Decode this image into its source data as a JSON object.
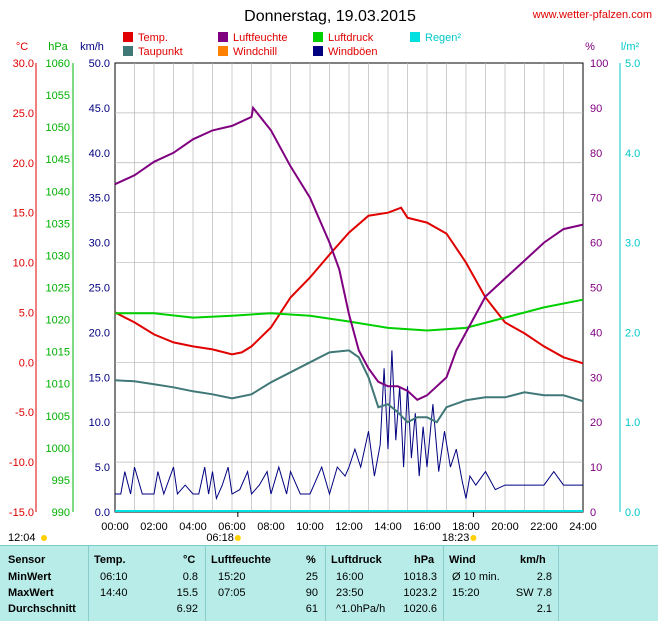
{
  "title": "Donnerstag, 19.03.2015",
  "site": "www.wetter-pfalzen.com",
  "legend": [
    {
      "name": "Temp.",
      "color": "#e00000"
    },
    {
      "name": "Luftfeuchte",
      "color": "#800080"
    },
    {
      "name": "Luftdruck",
      "color": "#00d000"
    },
    {
      "name": "Regen²",
      "color": "#00e0e0"
    },
    {
      "name": "Taupunkt",
      "color": "#407878"
    },
    {
      "name": "Windchill",
      "color": "#ff8000"
    },
    {
      "name": "Windböen",
      "color": "#000080"
    }
  ],
  "axis_units": {
    "temp": "°C",
    "pressure": "hPa",
    "wind": "km/h",
    "humidity": "%",
    "rain": "l/m²"
  },
  "sun": {
    "sunrise_marker": "06:18",
    "sunset_marker": "18:23",
    "left_label": "12:04"
  },
  "chart_data": {
    "type": "line",
    "x_ticks": [
      "00:00",
      "02:00",
      "04:00",
      "06:00",
      "08:00",
      "10:00",
      "12:00",
      "14:00",
      "16:00",
      "18:00",
      "20:00",
      "22:00",
      "24:00"
    ],
    "axes": {
      "temp": {
        "min": -15,
        "max": 30,
        "ticks": [
          "30.0",
          "25.0",
          "20.0",
          "15.0",
          "10.0",
          "5.0",
          "0.0",
          "-5.0",
          "-10.0",
          "-15.0"
        ]
      },
      "pressure": {
        "min": 990,
        "max": 1060,
        "ticks": [
          "1060",
          "1055",
          "1050",
          "1045",
          "1040",
          "1035",
          "1030",
          "1025",
          "1020",
          "1015",
          "1010",
          "1005",
          "1000",
          "995",
          "990"
        ]
      },
      "wind": {
        "min": 0,
        "max": 50,
        "ticks": [
          "50.0",
          "45.0",
          "40.0",
          "35.0",
          "30.0",
          "25.0",
          "20.0",
          "15.0",
          "10.0",
          "5.0",
          "0.0"
        ]
      },
      "humidity": {
        "min": 0,
        "max": 100,
        "ticks": [
          "100",
          "90",
          "80",
          "70",
          "60",
          "50",
          "40",
          "30",
          "20",
          "10",
          "0"
        ]
      },
      "rain": {
        "min": 0,
        "max": 5,
        "ticks": [
          "5.0",
          "4.0",
          "3.0",
          "2.0",
          "1.0",
          "0.0"
        ]
      }
    },
    "series": [
      {
        "name": "Temp.",
        "axis": "temp",
        "color": "#e00000",
        "x": [
          0,
          1,
          2,
          3,
          4,
          5,
          6,
          6.5,
          7,
          8,
          9,
          10,
          11,
          12,
          13,
          14,
          14.67,
          15,
          16,
          17,
          18,
          19,
          20,
          21,
          22,
          23,
          24
        ],
        "y": [
          5.0,
          4.0,
          2.8,
          2.0,
          1.6,
          1.3,
          0.8,
          1.0,
          1.6,
          3.5,
          6.5,
          8.5,
          10.8,
          13.0,
          14.7,
          15.0,
          15.5,
          14.5,
          14.0,
          12.9,
          10.0,
          6.5,
          4.0,
          2.9,
          1.6,
          0.5,
          -0.1
        ]
      },
      {
        "name": "Taupunkt",
        "axis": "temp",
        "color": "#407878",
        "x": [
          0,
          1,
          2,
          3,
          4,
          5,
          6,
          7,
          8,
          9,
          10,
          11,
          12,
          12.5,
          13,
          13.5,
          14,
          14.5,
          15,
          15.5,
          16,
          16.5,
          17,
          18,
          19,
          20,
          21,
          22,
          23,
          24
        ],
        "y": [
          -1.8,
          -1.9,
          -2.2,
          -2.5,
          -2.9,
          -3.2,
          -3.6,
          -3.2,
          -2.0,
          -1.0,
          0.0,
          1.0,
          1.2,
          0.5,
          -1.5,
          -4.5,
          -4.2,
          -5.0,
          -6.0,
          -5.5,
          -5.5,
          -6.0,
          -4.5,
          -3.8,
          -3.5,
          -3.5,
          -3.0,
          -3.3,
          -3.3,
          -3.9
        ]
      },
      {
        "name": "Luftdruck",
        "axis": "pressure",
        "color": "#00d000",
        "x": [
          0,
          2,
          4,
          6,
          8,
          10,
          12,
          14,
          16,
          18,
          20,
          22,
          24
        ],
        "y": [
          1021.0,
          1021.0,
          1020.3,
          1020.6,
          1021.0,
          1020.6,
          1019.7,
          1018.7,
          1018.3,
          1018.7,
          1020.3,
          1021.9,
          1023.1
        ]
      },
      {
        "name": "Luftfeuchte",
        "axis": "humidity",
        "color": "#800080",
        "x": [
          0,
          1,
          2,
          3,
          4,
          5,
          6,
          7,
          7.08,
          8,
          9,
          10,
          11,
          11.5,
          12,
          12.5,
          13,
          13.5,
          14,
          14.5,
          15,
          15.5,
          16,
          16.5,
          17,
          17.5,
          18,
          19,
          20,
          21,
          22,
          23,
          24
        ],
        "y": [
          73,
          75,
          78,
          80,
          83,
          85,
          86,
          88,
          90,
          85,
          77,
          70,
          60,
          54,
          44,
          36,
          32,
          29,
          28,
          28,
          27,
          25,
          26,
          28,
          30,
          36,
          40,
          48,
          52,
          56,
          60,
          63,
          64
        ]
      }
    ],
    "wind_gust_steps": [
      {
        "x": 0,
        "y": 2.0
      },
      {
        "x": 0.3,
        "y": 2.0
      },
      {
        "x": 0.5,
        "y": 4.5
      },
      {
        "x": 0.8,
        "y": 2.0
      },
      {
        "x": 1.0,
        "y": 5.0
      },
      {
        "x": 1.4,
        "y": 2.0
      },
      {
        "x": 2.0,
        "y": 2.0
      },
      {
        "x": 2.2,
        "y": 4.5
      },
      {
        "x": 2.5,
        "y": 2.0
      },
      {
        "x": 3.0,
        "y": 5.0
      },
      {
        "x": 3.2,
        "y": 2.0
      },
      {
        "x": 3.6,
        "y": 3.0
      },
      {
        "x": 4.0,
        "y": 2.0
      },
      {
        "x": 4.3,
        "y": 2.0
      },
      {
        "x": 4.6,
        "y": 5.0
      },
      {
        "x": 4.8,
        "y": 2.0
      },
      {
        "x": 5.0,
        "y": 4.5
      },
      {
        "x": 5.2,
        "y": 1.5
      },
      {
        "x": 5.5,
        "y": 3.0
      },
      {
        "x": 5.8,
        "y": 5.0
      },
      {
        "x": 6.0,
        "y": 2.0
      },
      {
        "x": 6.4,
        "y": 2.5
      },
      {
        "x": 6.8,
        "y": 4.5
      },
      {
        "x": 7.0,
        "y": 2.0
      },
      {
        "x": 7.4,
        "y": 3.0
      },
      {
        "x": 7.8,
        "y": 4.5
      },
      {
        "x": 8.0,
        "y": 2.0
      },
      {
        "x": 8.4,
        "y": 5.0
      },
      {
        "x": 8.8,
        "y": 2.0
      },
      {
        "x": 9.0,
        "y": 4.5
      },
      {
        "x": 9.5,
        "y": 2.0
      },
      {
        "x": 10.0,
        "y": 2.0
      },
      {
        "x": 10.2,
        "y": 3.0
      },
      {
        "x": 10.6,
        "y": 5.0
      },
      {
        "x": 11.0,
        "y": 2.0
      },
      {
        "x": 11.4,
        "y": 5.0
      },
      {
        "x": 11.8,
        "y": 4.0
      },
      {
        "x": 12.0,
        "y": 5.0
      },
      {
        "x": 12.3,
        "y": 7.0
      },
      {
        "x": 12.6,
        "y": 5.0
      },
      {
        "x": 13.0,
        "y": 9.0
      },
      {
        "x": 13.3,
        "y": 4.0
      },
      {
        "x": 13.6,
        "y": 7.5
      },
      {
        "x": 13.8,
        "y": 16.0
      },
      {
        "x": 14.0,
        "y": 7.0
      },
      {
        "x": 14.2,
        "y": 18.0
      },
      {
        "x": 14.4,
        "y": 8.0
      },
      {
        "x": 14.6,
        "y": 14.0
      },
      {
        "x": 14.8,
        "y": 5.0
      },
      {
        "x": 15.0,
        "y": 14.0
      },
      {
        "x": 15.2,
        "y": 6.0
      },
      {
        "x": 15.4,
        "y": 11.0
      },
      {
        "x": 15.6,
        "y": 4.0
      },
      {
        "x": 15.8,
        "y": 9.5
      },
      {
        "x": 16.0,
        "y": 5.0
      },
      {
        "x": 16.3,
        "y": 12.0
      },
      {
        "x": 16.6,
        "y": 4.5
      },
      {
        "x": 16.9,
        "y": 9.0
      },
      {
        "x": 17.2,
        "y": 5.0
      },
      {
        "x": 17.5,
        "y": 7.0
      },
      {
        "x": 17.8,
        "y": 3.5
      },
      {
        "x": 18.0,
        "y": 1.5
      },
      {
        "x": 18.2,
        "y": 4.0
      },
      {
        "x": 18.5,
        "y": 3.0
      },
      {
        "x": 19.0,
        "y": 4.5
      },
      {
        "x": 19.5,
        "y": 2.5
      },
      {
        "x": 20.0,
        "y": 3.0
      },
      {
        "x": 20.5,
        "y": 3.0
      },
      {
        "x": 21.0,
        "y": 3.0
      },
      {
        "x": 22.0,
        "y": 3.0
      },
      {
        "x": 22.5,
        "y": 4.5
      },
      {
        "x": 23.0,
        "y": 3.0
      },
      {
        "x": 24.0,
        "y": 3.0
      }
    ]
  },
  "table": {
    "headers": {
      "sensor": "Sensor",
      "temp": "Temp.",
      "temp_unit": "°C",
      "hum": "Luftfeuchte",
      "hum_unit": "%",
      "press": "Luftdruck",
      "press_unit": "hPa",
      "wind": "Wind",
      "wind_unit": "km/h"
    },
    "rows": [
      {
        "label": "MinWert",
        "t_time": "06:10",
        "t_val": "0.8",
        "h_time": "15:20",
        "h_val": "25",
        "p_time": "16:00",
        "p_val": "1018.3",
        "w_time": "Ø 10 min.",
        "w_val": "2.8"
      },
      {
        "label": "MaxWert",
        "t_time": "14:40",
        "t_val": "15.5",
        "h_time": "07:05",
        "h_val": "90",
        "p_time": "23:50",
        "p_val": "1023.2",
        "w_time": "15:20",
        "w_val": "SW 7.8"
      },
      {
        "label": "Durchschnitt",
        "t_time": "",
        "t_val": "6.92",
        "h_time": "",
        "h_val": "61",
        "p_time": "^1.0hPa/h",
        "p_val": "1020.6",
        "w_time": "",
        "w_val": "2.1"
      }
    ]
  }
}
